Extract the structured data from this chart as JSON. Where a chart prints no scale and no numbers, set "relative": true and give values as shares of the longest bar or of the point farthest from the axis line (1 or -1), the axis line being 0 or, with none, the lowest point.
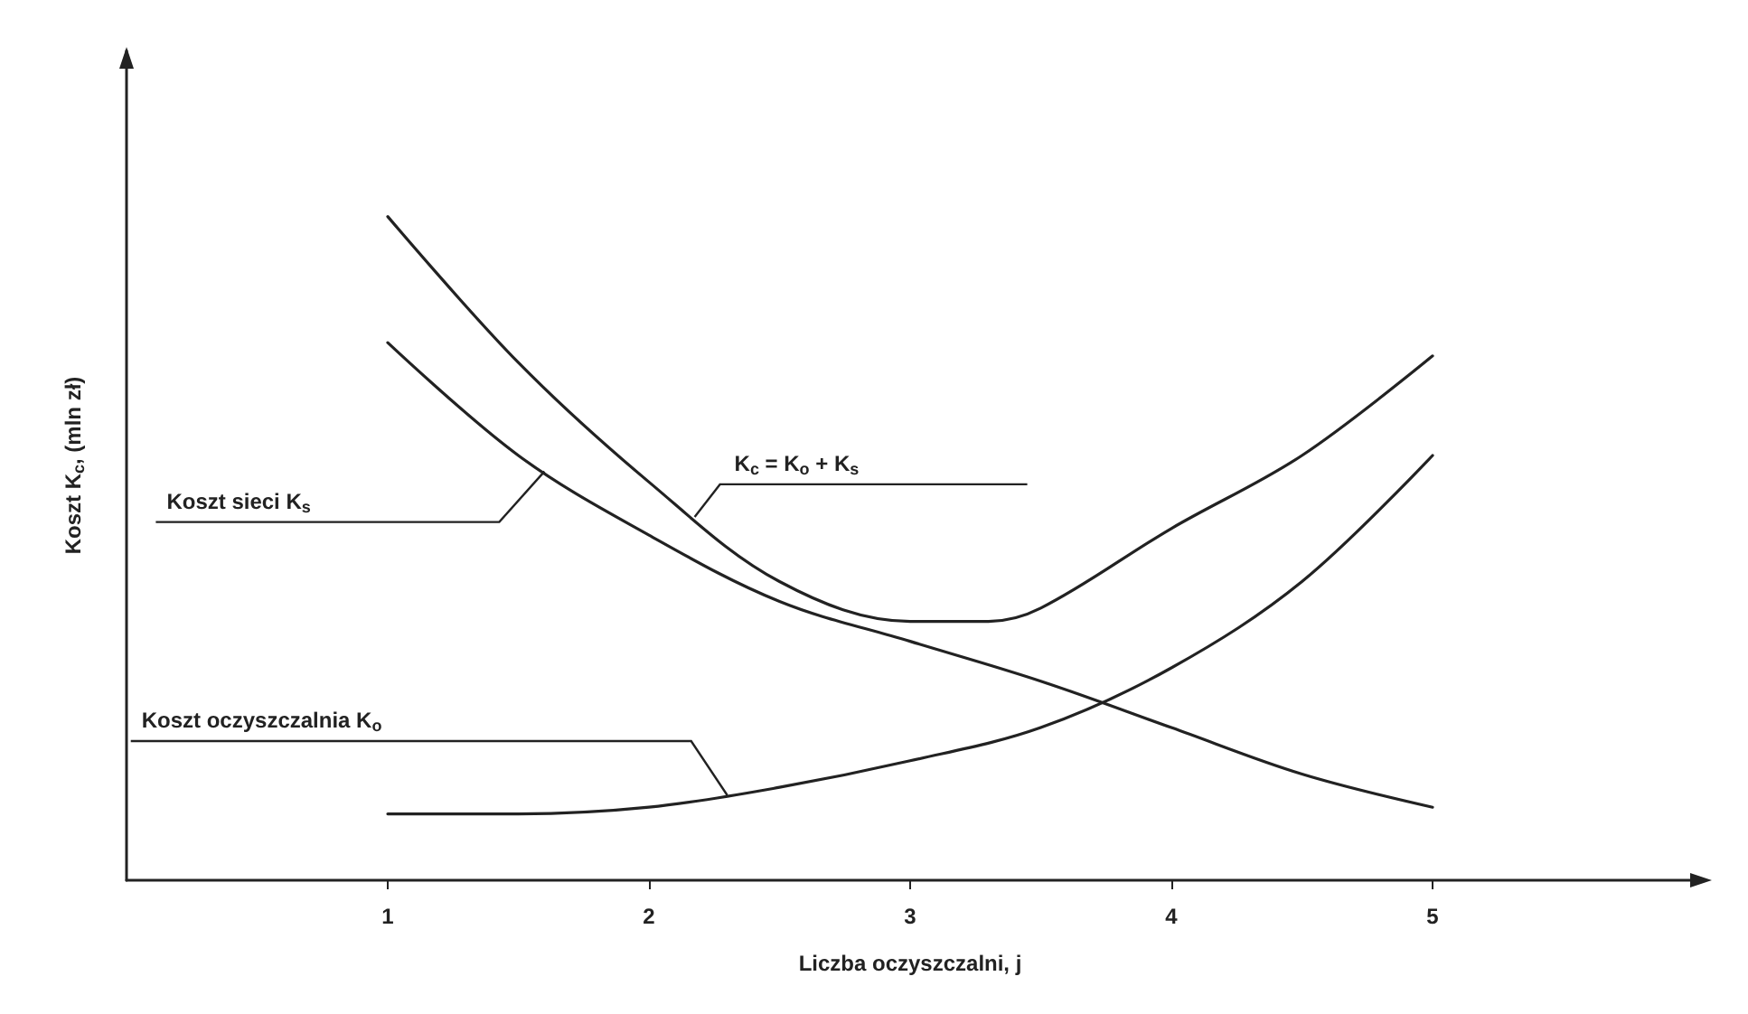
{
  "chart_data": {
    "type": "line",
    "relative": true,
    "xlabel": "Liczba oczyszczalni, j",
    "ylabel": "Koszt K$_{c}$, (mln zł)",
    "xlim": [
      0,
      6
    ],
    "xticks": [
      1,
      2,
      3,
      4,
      5
    ],
    "marker": "none",
    "line_style": "solid",
    "series": [
      {
        "name": "K$_{c}$ = K$_{o}$ + K$_{s}$",
        "color": "#222222",
        "x": [
          1,
          1.5,
          2,
          2.5,
          3,
          3.3,
          3.5,
          4,
          4.5,
          5
        ],
        "values": [
          1,
          0.78,
          0.6,
          0.45,
          0.39,
          0.39,
          0.41,
          0.53,
          0.64,
          0.79
        ]
      },
      {
        "name": "Koszt sieci K$_{s}$",
        "color": "#222222",
        "x": [
          1,
          1.5,
          2,
          2.5,
          3,
          3.5,
          4,
          4.5,
          5
        ],
        "values": [
          0.81,
          0.64,
          0.52,
          0.42,
          0.36,
          0.3,
          0.23,
          0.16,
          0.11
        ]
      },
      {
        "name": "Koszt oczyszczalnia K$_{o}$",
        "color": "#222222",
        "x": [
          1,
          1.5,
          2,
          2.5,
          3,
          3.5,
          4,
          4.5,
          5
        ],
        "values": [
          0.1,
          0.1,
          0.11,
          0.14,
          0.18,
          0.23,
          0.32,
          0.45,
          0.64
        ]
      }
    ]
  }
}
